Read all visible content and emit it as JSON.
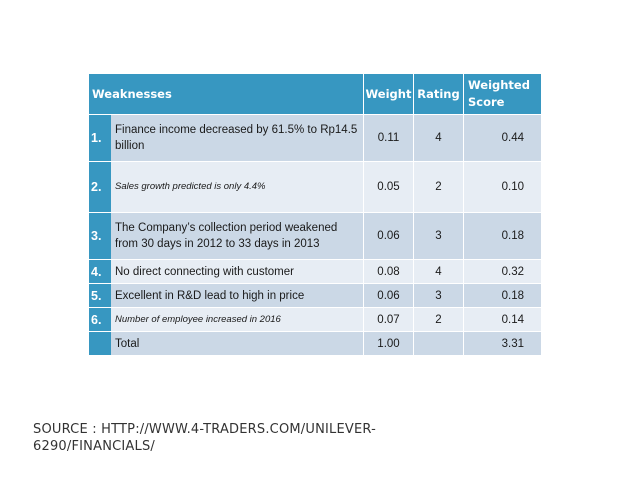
{
  "table": {
    "headers": {
      "weaknesses": "Weaknesses",
      "weight": "Weight",
      "rating": "Rating",
      "score_line1": "Weighted",
      "score_line2": "Score"
    },
    "rows": [
      {
        "num": "1.",
        "desc": "Finance income decreased by 61.5% to Rp14.5 billion",
        "weight": "0.11",
        "rating": "4",
        "score": "0.44"
      },
      {
        "num": "2.",
        "desc": "Sales growth predicted is only 4.4%",
        "weight": "0.05",
        "rating": "2",
        "score": "0.10"
      },
      {
        "num": "3.",
        "desc": "The Company’s collection period weakened from 30 days in 2012 to 33 days in 2013",
        "weight": "0.06",
        "rating": "3",
        "score": "0.18"
      },
      {
        "num": "4.",
        "desc": "No direct connecting with customer",
        "weight": "0.08",
        "rating": "4",
        "score": "0.32"
      },
      {
        "num": "5.",
        "desc": "Excellent in R&D lead to high in price",
        "weight": "0.06",
        "rating": "3",
        "score": "0.18"
      },
      {
        "num": "6.",
        "desc": "Number of employee increased in 2016",
        "weight": "0.07",
        "rating": "2",
        "score": "0.14"
      }
    ],
    "total": {
      "label": "Total",
      "weight": "1.00",
      "rating": "",
      "score": "3.31"
    }
  },
  "source": {
    "line1": "SOURCE : HTTP://WWW.4-TRADERS.COM/UNILEVER-",
    "line2": "6290/FINANCIALS/"
  },
  "colors": {
    "header_blue": "#3797c1",
    "row_dark": "#cbd8e6",
    "row_light": "#e7edf4"
  }
}
